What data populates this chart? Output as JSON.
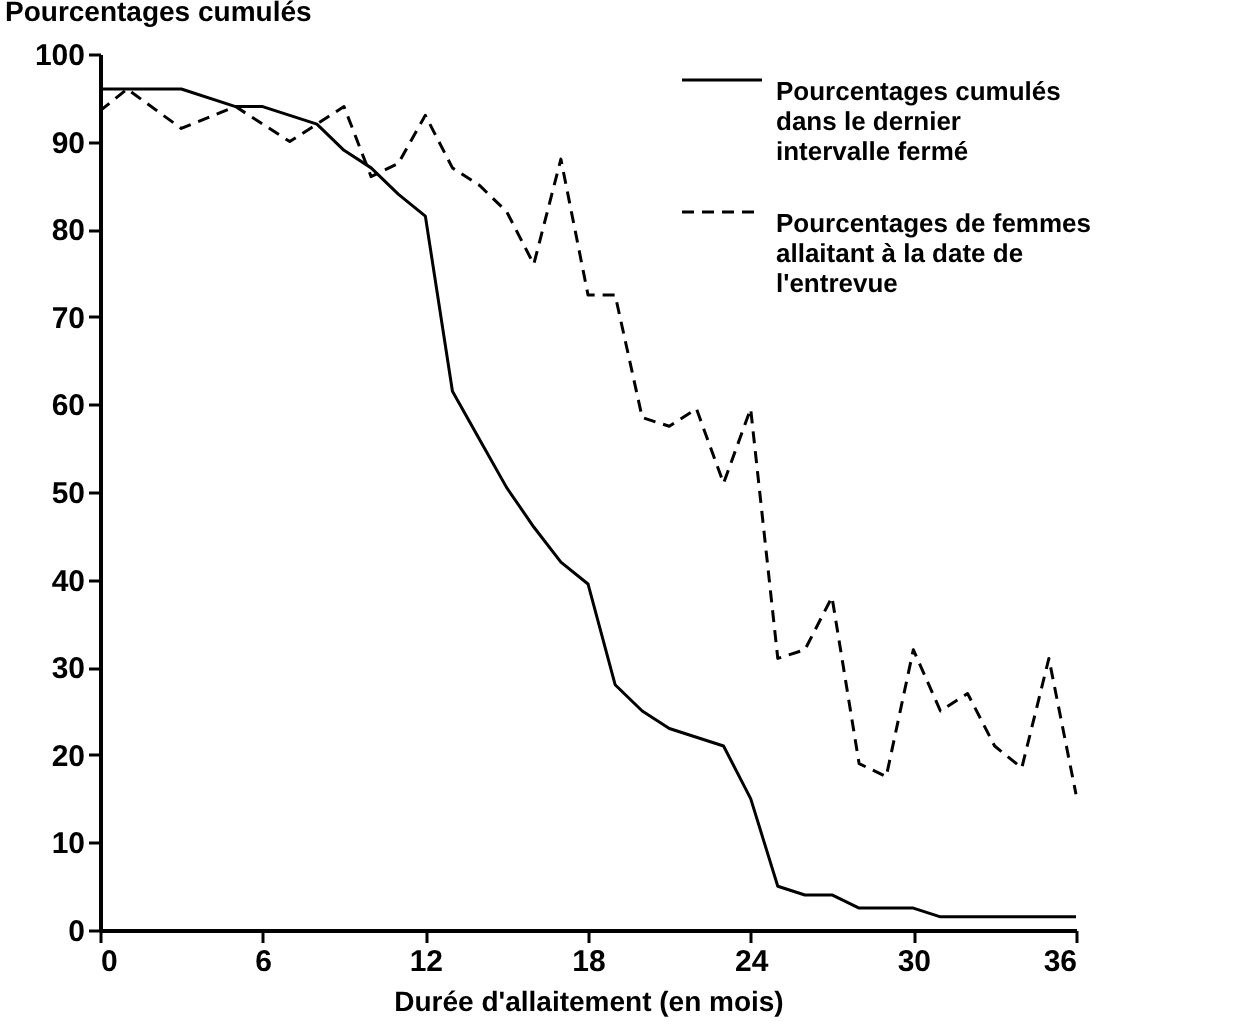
{
  "chart_data": {
    "type": "line",
    "ylabel": "Pourcentages cumulés",
    "xlabel": "Durée d'allaitement (en mois)",
    "xlim": [
      0,
      36
    ],
    "xticks": [
      0,
      6,
      12,
      18,
      24,
      30,
      36
    ],
    "ylim": [
      0,
      100
    ],
    "yticks": [
      0,
      10,
      20,
      30,
      40,
      50,
      60,
      70,
      80,
      90,
      100
    ],
    "grid": false,
    "legend": "top right",
    "marker": "none",
    "series": [
      {
        "name": "Pourcentages cumulés dans le dernier intervalle fermé",
        "color": "#000000",
        "line_style": "solid",
        "x": [
          0,
          3,
          5,
          6,
          8,
          9,
          10,
          11,
          12,
          13,
          14,
          15,
          16,
          17,
          18,
          19,
          20,
          21,
          22,
          23,
          24,
          25,
          26,
          27,
          28,
          29,
          30,
          31,
          32,
          33,
          34,
          35,
          36
        ],
        "values": [
          96,
          96,
          94,
          94,
          92,
          89,
          87,
          84,
          81.5,
          61.5,
          56,
          50.5,
          46,
          42,
          39.5,
          28,
          25,
          23,
          22,
          21,
          15,
          5,
          4,
          4,
          2.5,
          2.5,
          2.5,
          1.5,
          1.5,
          1.5,
          1.5,
          1.5,
          1.5
        ]
      },
      {
        "name": "Pourcentages de femmes allaitant à la date de l'entrevue",
        "color": "#000000",
        "line_style": "dashed",
        "x": [
          0,
          1,
          3,
          5,
          7,
          8,
          9,
          10,
          11,
          12,
          13,
          14,
          15,
          16,
          17,
          18,
          19,
          20,
          21,
          22,
          23,
          24,
          25,
          26,
          27,
          28,
          29,
          30,
          31,
          32,
          33,
          34,
          35,
          36
        ],
        "values": [
          93.5,
          96,
          91.5,
          94,
          90,
          92,
          94,
          86,
          87.5,
          93,
          87,
          85,
          82,
          76,
          88,
          72.5,
          72.5,
          58.5,
          57.5,
          59.5,
          51,
          59.5,
          31,
          32,
          38,
          19,
          17.5,
          32,
          25,
          27,
          21,
          18.5,
          31,
          15.5
        ]
      }
    ]
  }
}
